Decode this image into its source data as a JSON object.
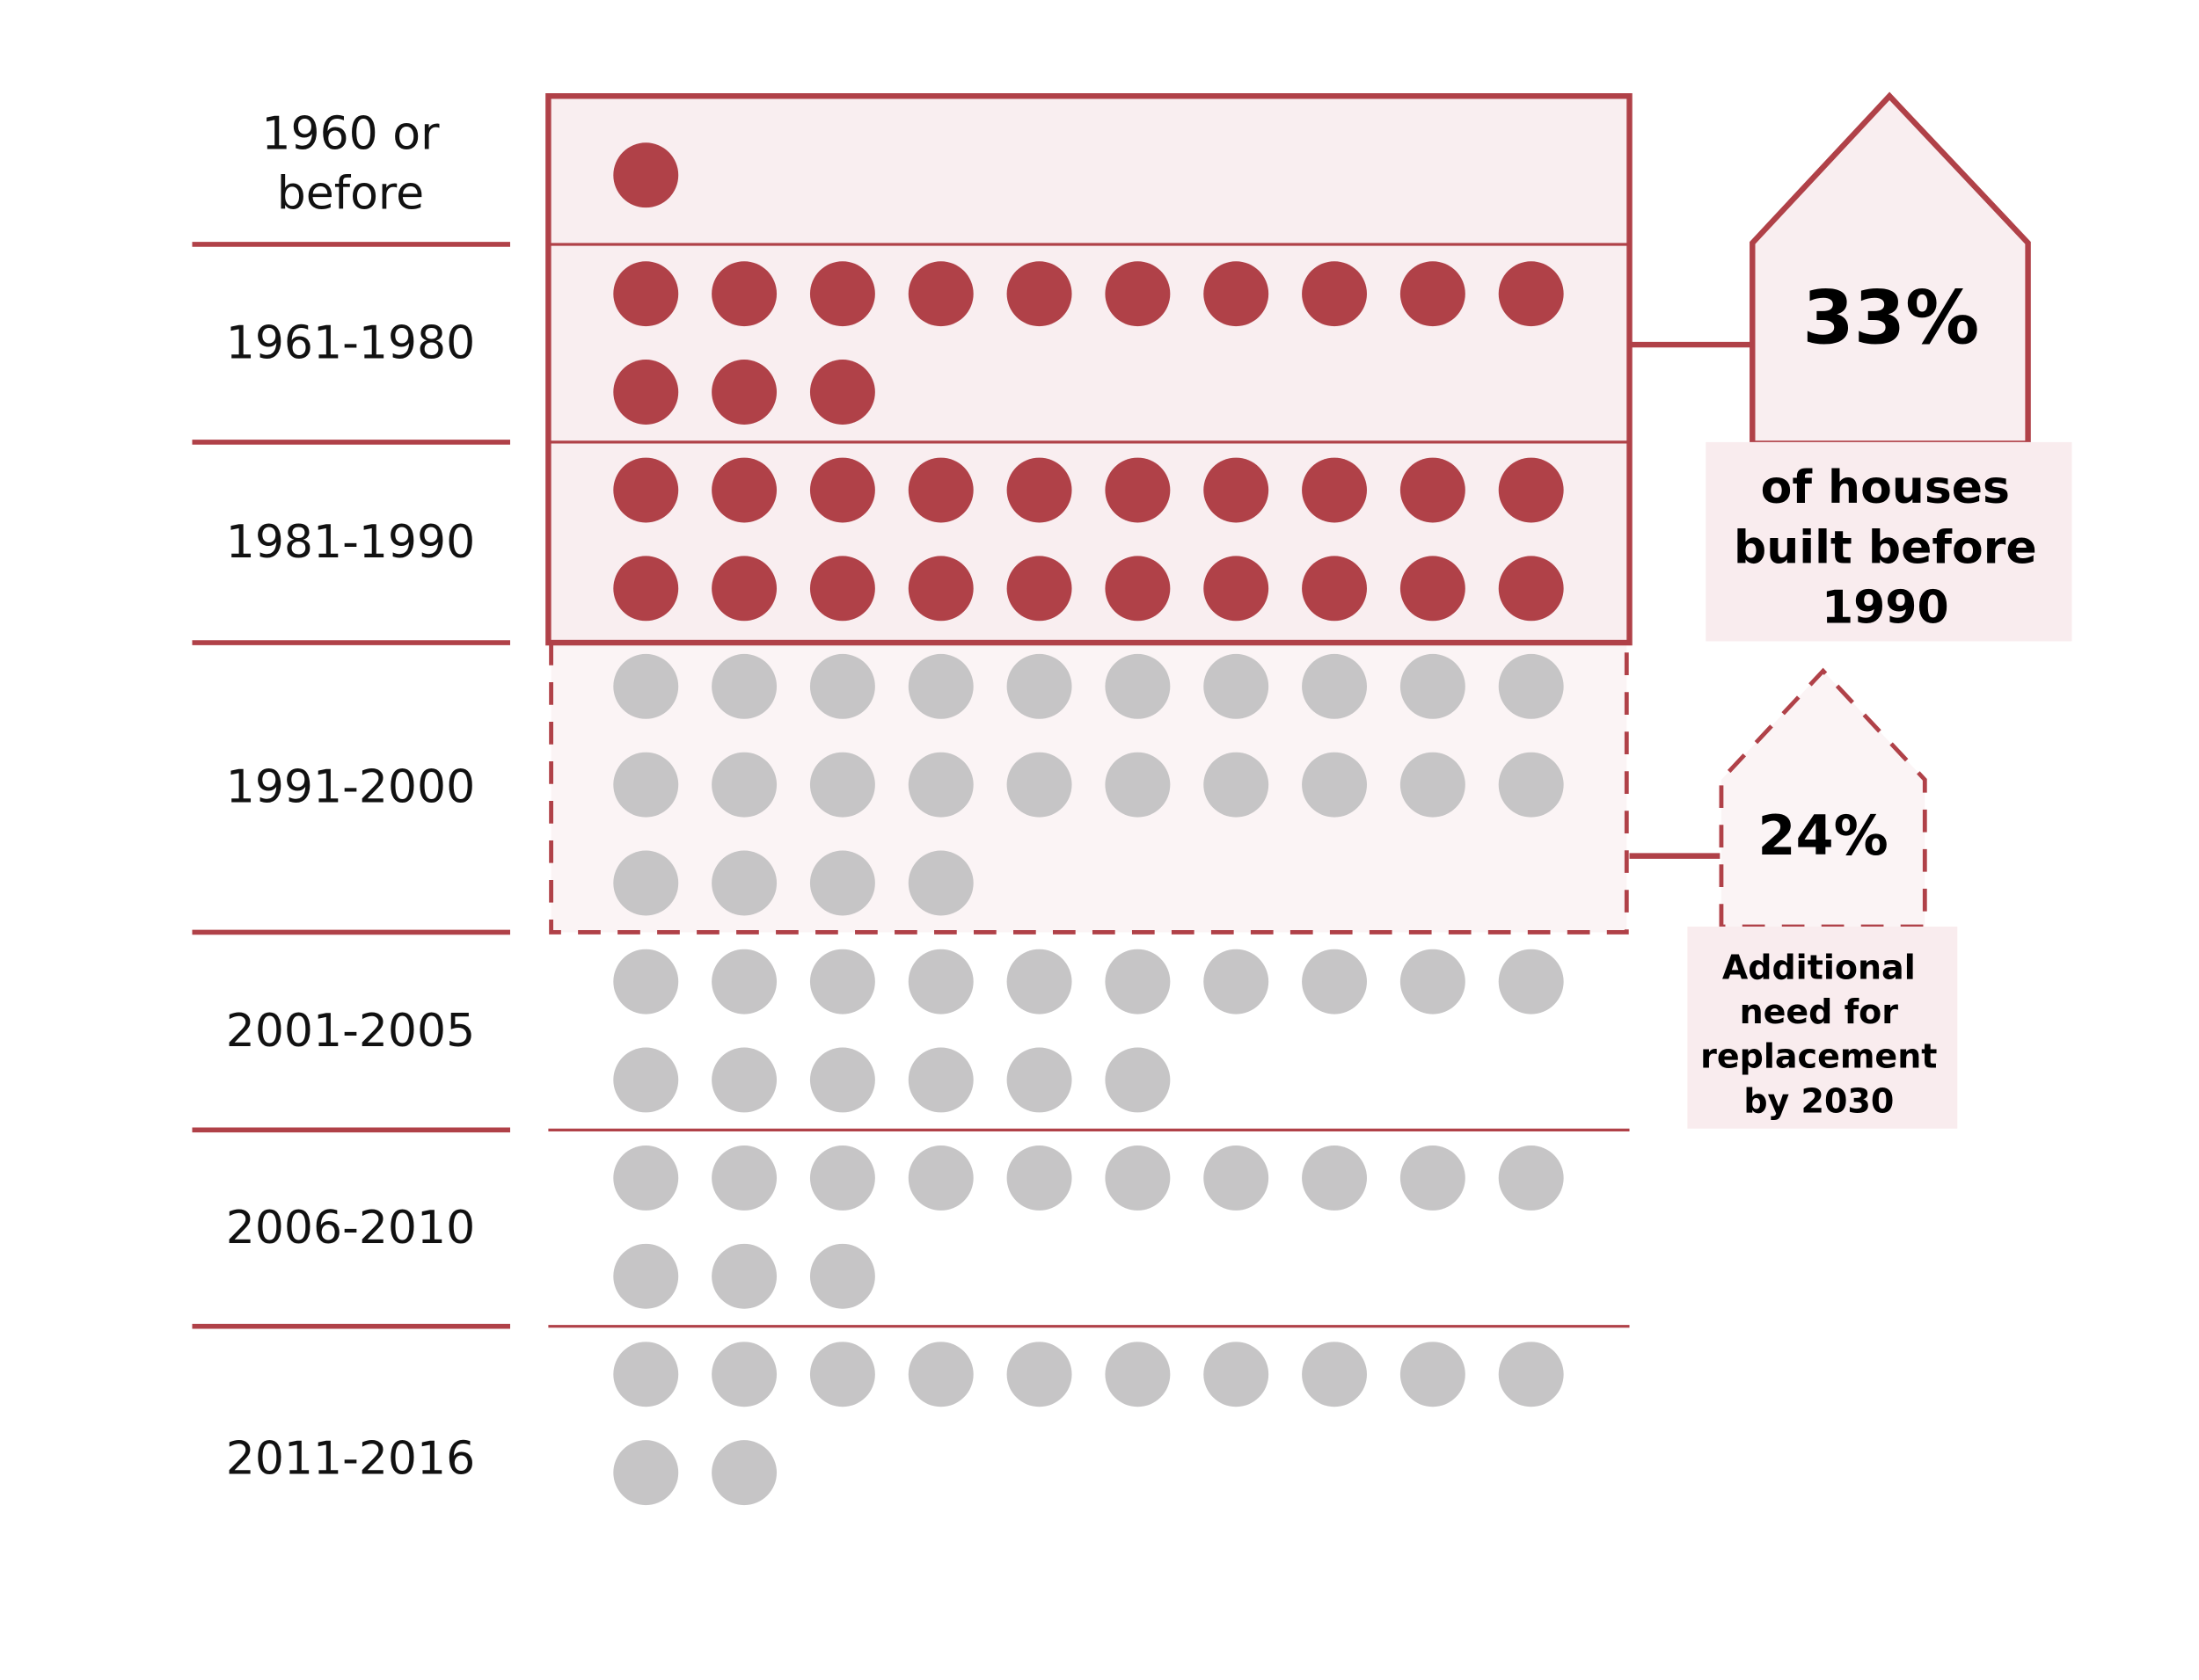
{
  "colors": {
    "accent": "#b04148",
    "highlight_fill": "#f9eef0",
    "dashed_fill": "#fbf4f5",
    "callout_box_fill": "#f9ecee",
    "grey_dot": "#c6c5c6"
  },
  "chart_data": {
    "type": "dot-matrix",
    "categories": [
      "1960 or before",
      "1961-1980",
      "1981-1990",
      "1991-2000",
      "2001-2005",
      "2006-2010",
      "2011-2016"
    ],
    "values": [
      1,
      13,
      20,
      24,
      16,
      13,
      12
    ],
    "highlighted_categories": [
      "1960 or before",
      "1961-1980",
      "1981-1990"
    ],
    "additional_need_categories": [
      "1991-2000"
    ],
    "callouts": [
      {
        "value": "33%",
        "lines": [
          "of houses",
          "built before",
          "1990"
        ]
      },
      {
        "value": "24%",
        "lines": [
          "Additional",
          "need for",
          "replacement",
          "by 2030"
        ]
      }
    ]
  }
}
